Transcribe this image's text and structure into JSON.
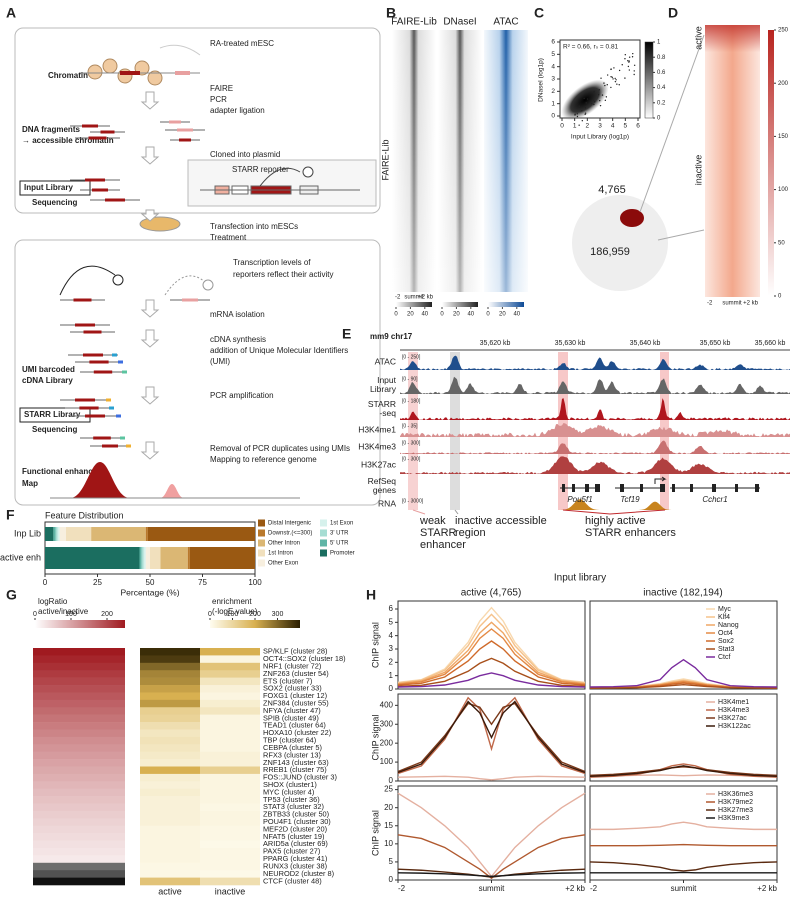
{
  "panel_labels": [
    "A",
    "B",
    "C",
    "D",
    "E",
    "F",
    "G",
    "H"
  ],
  "panel_a": {
    "labels": [
      "RA-treated mESC",
      "Chromatin",
      "FAIRE",
      "PCR",
      "adapter ligation",
      "DNA fragments",
      "→ accessible chromatin",
      "Cloned into plasmid",
      "STARR reporter",
      "Input Library",
      "Sequencing",
      "Transfection into mESCs",
      "Treatment",
      "Transcription levels of",
      "reporters reflect their activity",
      "mRNA isolation",
      "cDNA synthesis",
      "addition of Unique Molecular Identifiers",
      "(UMI)",
      "UMI barcoded",
      "cDNA Library",
      "PCR amplification",
      "STARR Library",
      "Sequencing",
      "Removal of PCR duplicates using UMIs",
      "Mapping to reference genome",
      "Functional enhancer",
      "Map",
      "GFP",
      "enhancer"
    ]
  },
  "panel_b": {
    "columns": [
      "FAIRE-Lib",
      "DNaseI",
      "ATAC"
    ],
    "row_label": "FAIRE-Lib",
    "axis": [
      "-2",
      "summit",
      "+2 kb"
    ],
    "colorbar_lim": [
      0,
      50
    ],
    "colorbar_ticks": [
      [
        0,
        20,
        40
      ],
      [
        0,
        20,
        40
      ],
      [
        0,
        20,
        40
      ]
    ]
  },
  "panel_c": {
    "stat": "R² = 0.66, rₛ = 0.81",
    "xlabel": "Input Library (log1p)",
    "ylabel": "DNaseI (log1p)",
    "xlim": [
      0,
      6
    ],
    "ylim": [
      0,
      6
    ],
    "xticks": [
      0,
      1,
      2,
      3,
      4,
      5,
      6
    ],
    "yticks": [
      0,
      1,
      2,
      3,
      4,
      5,
      6
    ],
    "colorbar_lim": [
      0,
      1
    ],
    "colorbar_ticks": [
      0,
      0.2,
      0.4,
      0.6,
      0.8,
      1
    ],
    "venn": [
      "4,765",
      "186,959"
    ]
  },
  "panel_d": {
    "rows": [
      "active",
      "inactive"
    ],
    "axis": [
      "-2",
      "summit",
      "+2 kb"
    ],
    "colorbar_lim": [
      0,
      250
    ],
    "colorbar_ticks": [
      0,
      50,
      100,
      150,
      200,
      250
    ]
  },
  "panel_e": {
    "locus": "mm9 chr17",
    "coords": [
      "35,620 kb",
      "35,630 kb",
      "35,640 kb",
      "35,650 kb",
      "35,660 kb"
    ],
    "tracks": [
      {
        "name": [
          "ATAC"
        ],
        "range": "[0 - 250]"
      },
      {
        "name": [
          "Input",
          "Library"
        ],
        "range": "[0 - 90]"
      },
      {
        "name": [
          "STARR",
          "-seq"
        ],
        "range": "[0 - 180]"
      },
      {
        "name": [
          "H3K4me1"
        ],
        "range": "[0 - 35]"
      },
      {
        "name": [
          "H3K4me3"
        ],
        "range": "[0 - 300]"
      },
      {
        "name": [
          "H3K27ac"
        ],
        "range": "[0 - 300]"
      },
      {
        "name": [
          "RefSeq",
          "genes"
        ]
      },
      {
        "name": [
          "RNA"
        ],
        "range": "[0 - 3000]"
      }
    ],
    "genes": [
      "Pou5f1",
      "Tcf19",
      "Cchcr1"
    ],
    "annotations": [
      [
        "weak",
        "STARR",
        "enhancer"
      ],
      [
        "inactive accessible",
        "region"
      ],
      [
        "highly active",
        "STARR enhancers"
      ]
    ]
  },
  "panel_h": {
    "title": "Input library",
    "columns": [
      "active (4,765)",
      "inactive (182,194)"
    ]
  },
  "chart_data": [
    {
      "type": "bar",
      "orientation": "horizontal",
      "stacked": true,
      "title": "Feature Distribution",
      "categories": [
        "Inp Lib",
        "active enh"
      ],
      "xlabel": "Percentage (%)",
      "xlim": [
        0,
        100
      ],
      "xticks": [
        0,
        25,
        50,
        75,
        100
      ],
      "series": [
        {
          "name": "Promoter",
          "color": "#1b6e60",
          "values": [
            4,
            45
          ]
        },
        {
          "name": "5' UTR",
          "color": "#5fb5a6",
          "values": [
            1,
            1
          ]
        },
        {
          "name": "3' UTR",
          "color": "#a6ddd3",
          "values": [
            1,
            1
          ]
        },
        {
          "name": "1st Exon",
          "color": "#d6f1ec",
          "values": [
            1,
            1
          ]
        },
        {
          "name": "Other Exon",
          "color": "#f7efdf",
          "values": [
            3,
            2
          ]
        },
        {
          "name": "1st Intron",
          "color": "#f1e0bd",
          "values": [
            12,
            5
          ]
        },
        {
          "name": "Other Intron",
          "color": "#dbb774",
          "values": [
            26,
            13
          ]
        },
        {
          "name": "Downstr.(<=300)",
          "color": "#b9792c",
          "values": [
            1,
            1
          ]
        },
        {
          "name": "Distal Intergenic",
          "color": "#9a5912",
          "values": [
            51,
            31
          ]
        }
      ]
    },
    {
      "type": "heatmap",
      "rows": [
        "SP/KLF (cluster 28)",
        "OCT4::SOX2 (cluster 18)",
        "NRF1 (cluster 72)",
        "ZNF263 (cluster 54)",
        "ETS (cluster 7)",
        "SOX2 (cluster 33)",
        "FOXG1 (cluster 12)",
        "ZNF384 (cluster 55)",
        "NFYA (cluster 47)",
        "SPIB (cluster 49)",
        "TEAD1 (cluster 64)",
        "HOXA10 (cluster 22)",
        "TBP (cluster 64)",
        "CEBPA (cluster 5)",
        "RFX3 (cluster 13)",
        "ZNF143 (cluster 63)",
        "RREB1 (cluster 75)",
        "FOS::JUND (cluster 3)",
        "SHOX (cluster1)",
        "MYC (cluster 4)",
        "TP53 (cluster 36)",
        "STAT3 (cluster 32)",
        "ZBTB33 (cluster 50)",
        "POU4F1 (cluster 30)",
        "MEF2D (cluster 20)",
        "NFAT5 (cluster 19)",
        "ARID5a (cluster 69)",
        "PAX5 (cluster 27)",
        "PPARG (cluster 41)",
        "RUNX3 (cluster 38)",
        "NEUROD2 (cluster 8)",
        "CTCF (cluster 48)"
      ],
      "logratio": {
        "title": [
          "logRatio",
          "active/inactive"
        ],
        "lim": [
          0,
          250
        ],
        "ticks": [
          0,
          100,
          200
        ],
        "values": [
          250,
          238,
          226,
          214,
          203,
          192,
          182,
          172,
          162,
          152,
          143,
          134,
          125,
          117,
          109,
          101,
          94,
          87,
          80,
          73,
          67,
          61,
          55,
          49,
          44,
          39,
          34,
          29,
          24,
          -80,
          -130,
          -250
        ]
      },
      "enrichment": {
        "title": [
          "enrichment",
          "(-logE.value)"
        ],
        "lim": [
          0,
          400
        ],
        "ticks": [
          0,
          100,
          200,
          300
        ],
        "columns": [
          "active",
          "inactive"
        ],
        "values": [
          [
            380,
            200
          ],
          [
            360,
            20
          ],
          [
            300,
            150
          ],
          [
            260,
            120
          ],
          [
            250,
            60
          ],
          [
            220,
            30
          ],
          [
            200,
            20
          ],
          [
            230,
            40
          ],
          [
            120,
            60
          ],
          [
            110,
            20
          ],
          [
            80,
            20
          ],
          [
            60,
            20
          ],
          [
            70,
            20
          ],
          [
            60,
            20
          ],
          [
            50,
            30
          ],
          [
            40,
            30
          ],
          [
            200,
            120
          ],
          [
            40,
            20
          ],
          [
            30,
            20
          ],
          [
            40,
            20
          ],
          [
            30,
            20
          ],
          [
            30,
            15
          ],
          [
            30,
            20
          ],
          [
            30,
            20
          ],
          [
            20,
            15
          ],
          [
            20,
            15
          ],
          [
            20,
            10
          ],
          [
            20,
            15
          ],
          [
            20,
            15
          ],
          [
            15,
            15
          ],
          [
            15,
            10
          ],
          [
            150,
            80
          ]
        ]
      }
    },
    {
      "type": "line",
      "ylabel": "ChIP signal",
      "x": [
        -2,
        -1.5,
        -1,
        -0.5,
        -0.25,
        0,
        0.25,
        0.5,
        1,
        1.5,
        2
      ],
      "xlim": [
        -2,
        2
      ],
      "ylim": [
        0,
        6.6
      ],
      "yticks": [
        0,
        1,
        2,
        3,
        4,
        5,
        6
      ],
      "series": [
        {
          "name": "Myc",
          "color": "#f8d8ae",
          "active": [
            0.5,
            0.7,
            1.5,
            3.5,
            5.1,
            6.1,
            5.1,
            3.5,
            1.5,
            0.7,
            0.5
          ],
          "inactive": [
            0.1,
            0.12,
            0.18,
            0.4,
            0.6,
            0.75,
            0.6,
            0.4,
            0.18,
            0.12,
            0.1
          ]
        },
        {
          "name": "Klf4",
          "color": "#f5c28b",
          "active": [
            0.45,
            0.67,
            1.4,
            3.25,
            4.7,
            5.6,
            4.7,
            3.25,
            1.4,
            0.67,
            0.45
          ],
          "inactive": [
            0.1,
            0.11,
            0.16,
            0.35,
            0.52,
            0.65,
            0.52,
            0.35,
            0.16,
            0.11,
            0.1
          ]
        },
        {
          "name": "Nanog",
          "color": "#efa765",
          "active": [
            0.4,
            0.6,
            1.25,
            2.9,
            4.2,
            5.0,
            4.2,
            2.9,
            1.25,
            0.6,
            0.4
          ],
          "inactive": [
            0.09,
            0.1,
            0.15,
            0.32,
            0.48,
            0.6,
            0.48,
            0.32,
            0.15,
            0.1,
            0.09
          ]
        },
        {
          "name": "Oct4",
          "color": "#e48a45",
          "active": [
            0.36,
            0.54,
            1.1,
            2.6,
            3.8,
            4.5,
            3.8,
            2.6,
            1.1,
            0.54,
            0.36
          ],
          "inactive": [
            0.08,
            0.1,
            0.14,
            0.3,
            0.44,
            0.55,
            0.44,
            0.3,
            0.14,
            0.1,
            0.08
          ]
        },
        {
          "name": "Sox2",
          "color": "#cf6a2a",
          "active": [
            0.3,
            0.43,
            0.9,
            2.1,
            3.0,
            3.6,
            3.0,
            2.1,
            0.9,
            0.43,
            0.3
          ],
          "inactive": [
            0.07,
            0.09,
            0.12,
            0.25,
            0.36,
            0.45,
            0.36,
            0.25,
            0.12,
            0.09,
            0.07
          ]
        },
        {
          "name": "Stat3",
          "color": "#a74f1a",
          "active": [
            0.2,
            0.28,
            0.58,
            1.33,
            1.93,
            2.3,
            1.93,
            1.33,
            0.58,
            0.28,
            0.2
          ],
          "inactive": [
            0.06,
            0.07,
            0.1,
            0.18,
            0.26,
            0.32,
            0.26,
            0.18,
            0.1,
            0.07,
            0.06
          ]
        },
        {
          "name": "Ctcf",
          "color": "#7a2c9e",
          "active": [
            0.15,
            0.18,
            0.3,
            0.65,
            1.0,
            1.2,
            1.0,
            0.65,
            0.3,
            0.18,
            0.15
          ],
          "inactive": [
            0.15,
            0.17,
            0.25,
            0.7,
            1.6,
            2.2,
            1.6,
            0.7,
            0.25,
            0.17,
            0.15
          ]
        }
      ]
    },
    {
      "type": "line",
      "ylabel": "ChIP signal",
      "x": [
        -2,
        -1.5,
        -1,
        -0.5,
        -0.25,
        0,
        0.25,
        0.5,
        1,
        1.5,
        2
      ],
      "xlim": [
        -2,
        2
      ],
      "ylim": [
        0,
        460
      ],
      "yticks": [
        0,
        100,
        200,
        300,
        400
      ],
      "series": [
        {
          "name": "H3K4me1",
          "color": "#e4b0a0",
          "active": [
            20,
            22,
            25,
            20,
            12,
            6,
            12,
            20,
            25,
            22,
            20
          ],
          "inactive": [
            25,
            27,
            30,
            32,
            30,
            28,
            30,
            32,
            30,
            27,
            25
          ]
        },
        {
          "name": "H3K4me3",
          "color": "#c0694a",
          "active": [
            40,
            80,
            220,
            440,
            380,
            170,
            380,
            440,
            220,
            80,
            40
          ],
          "inactive": [
            20,
            25,
            35,
            60,
            80,
            90,
            80,
            60,
            35,
            25,
            20
          ]
        },
        {
          "name": "H3K27ac",
          "color": "#7a391a",
          "active": [
            50,
            100,
            240,
            410,
            390,
            300,
            390,
            410,
            240,
            100,
            50
          ],
          "inactive": [
            30,
            35,
            45,
            60,
            70,
            75,
            70,
            60,
            45,
            35,
            30
          ]
        },
        {
          "name": "H3K122ac",
          "color": "#3a1a0a",
          "active": [
            45,
            90,
            230,
            420,
            360,
            230,
            360,
            420,
            230,
            90,
            45
          ],
          "inactive": [
            25,
            30,
            40,
            55,
            70,
            80,
            70,
            55,
            40,
            30,
            25
          ]
        }
      ]
    },
    {
      "type": "line",
      "ylabel": "ChIP signal",
      "x": [
        -2,
        -1.5,
        -1,
        -0.5,
        -0.25,
        0,
        0.25,
        0.5,
        1,
        1.5,
        2
      ],
      "xlim": [
        -2,
        2
      ],
      "ylim": [
        0,
        26
      ],
      "yticks": [
        0,
        5,
        10,
        15,
        20,
        25
      ],
      "xticks": [
        -2,
        {
          "value": 0,
          "label": "summit"
        },
        {
          "value": 2,
          "label": "+2 kb"
        }
      ],
      "series": [
        {
          "name": "H3K36me3",
          "color": "#e4b0a0",
          "active": [
            24,
            20,
            15,
            9,
            5,
            1,
            5,
            9,
            15,
            20,
            24
          ],
          "inactive": [
            14,
            14,
            14.3,
            14.7,
            15.5,
            16,
            15.5,
            14.7,
            14.3,
            14,
            14
          ]
        },
        {
          "name": "H3K79me2",
          "color": "#b0592f",
          "active": [
            12.5,
            11.5,
            9,
            5,
            3,
            0.5,
            3,
            5,
            9,
            11.5,
            12.5
          ],
          "inactive": [
            9.5,
            9.5,
            9.5,
            9.6,
            9.7,
            9.8,
            9.7,
            9.6,
            9.5,
            9.5,
            9.5
          ]
        },
        {
          "name": "H3K27me3",
          "color": "#5a2a10",
          "active": [
            3,
            2.7,
            2.2,
            1.6,
            1.2,
            0.8,
            1.2,
            1.6,
            2.2,
            2.7,
            3
          ],
          "inactive": [
            5,
            4.8,
            4.3,
            3.5,
            2.8,
            2.5,
            2.8,
            3.5,
            4.3,
            4.8,
            5
          ]
        },
        {
          "name": "H3K9me3",
          "color": "#1a1a1a",
          "active": [
            2,
            1.9,
            1.7,
            1.4,
            1.2,
            1,
            1.2,
            1.4,
            1.7,
            1.9,
            2
          ],
          "inactive": [
            2,
            2,
            2,
            2,
            2,
            2.1,
            2,
            2,
            2,
            2,
            2
          ]
        }
      ]
    }
  ]
}
